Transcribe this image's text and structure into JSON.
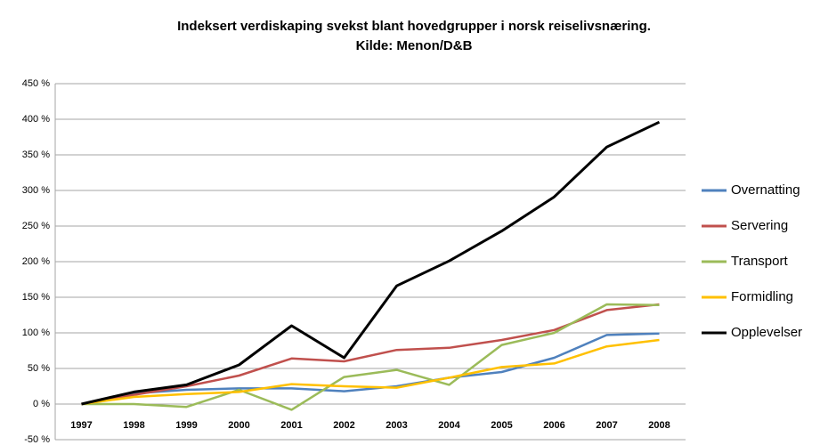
{
  "chart_data": {
    "type": "line",
    "title": "Indeksert verdiskaping svekst blant hovedgrupper i norsk reiselivsnæring.",
    "subtitle": "Kilde: Menon/D&B",
    "categories": [
      "1997",
      "1998",
      "1999",
      "2000",
      "2001",
      "2002",
      "2003",
      "2004",
      "2005",
      "2006",
      "2007",
      "2008"
    ],
    "series": [
      {
        "name": "Overnatting",
        "color": "#4f81bd",
        "values": [
          0,
          15,
          20,
          22,
          22,
          18,
          25,
          37,
          45,
          65,
          97,
          99
        ]
      },
      {
        "name": "Servering",
        "color": "#c0504d",
        "values": [
          0,
          13,
          25,
          40,
          64,
          60,
          76,
          79,
          90,
          104,
          132,
          140
        ]
      },
      {
        "name": "Transport",
        "color": "#9bbb59",
        "values": [
          0,
          0,
          -4,
          20,
          -8,
          38,
          48,
          27,
          83,
          100,
          140,
          139
        ]
      },
      {
        "name": "Formidling",
        "color": "#ffc000",
        "values": [
          0,
          10,
          14,
          17,
          28,
          25,
          23,
          37,
          52,
          57,
          81,
          90
        ]
      },
      {
        "name": "Opplevelser",
        "color": "#000000",
        "values": [
          0,
          17,
          27,
          55,
          110,
          65,
          166,
          201,
          243,
          291,
          361,
          396
        ]
      }
    ],
    "ylim": [
      -50,
      450
    ],
    "yticks": [
      {
        "value": -50,
        "label": "-50 %"
      },
      {
        "value": 0,
        "label": "0 %"
      },
      {
        "value": 50,
        "label": "50 %"
      },
      {
        "value": 100,
        "label": "100 %"
      },
      {
        "value": 150,
        "label": "150 %"
      },
      {
        "value": 200,
        "label": "200 %"
      },
      {
        "value": 250,
        "label": "250 %"
      },
      {
        "value": 300,
        "label": "300 %"
      },
      {
        "value": 350,
        "label": "350 %"
      },
      {
        "value": 400,
        "label": "400 %"
      },
      {
        "value": 450,
        "label": "450 %"
      }
    ],
    "grid": true,
    "legend": "right"
  }
}
